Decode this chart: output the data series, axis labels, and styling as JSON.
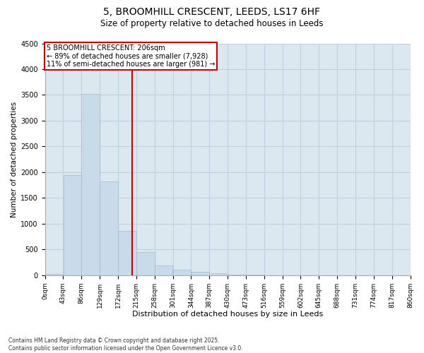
{
  "title_line1": "5, BROOMHILL CRESCENT, LEEDS, LS17 6HF",
  "title_line2": "Size of property relative to detached houses in Leeds",
  "xlabel": "Distribution of detached houses by size in Leeds",
  "ylabel": "Number of detached properties",
  "bin_labels": [
    "0sqm",
    "43sqm",
    "86sqm",
    "129sqm",
    "172sqm",
    "215sqm",
    "258sqm",
    "301sqm",
    "344sqm",
    "387sqm",
    "430sqm",
    "473sqm",
    "516sqm",
    "559sqm",
    "602sqm",
    "645sqm",
    "688sqm",
    "731sqm",
    "774sqm",
    "817sqm",
    "860sqm"
  ],
  "bin_edges": [
    0,
    43,
    86,
    129,
    172,
    215,
    258,
    301,
    344,
    387,
    430,
    473,
    516,
    559,
    602,
    645,
    688,
    731,
    774,
    817,
    860
  ],
  "bar_values": [
    30,
    1940,
    3520,
    1820,
    860,
    450,
    185,
    110,
    70,
    40,
    10,
    5,
    3,
    2,
    1,
    1,
    0,
    0,
    0,
    0
  ],
  "bar_color": "#c9daea",
  "bar_edge_color": "#a0bccc",
  "vline_x": 206,
  "vline_color": "#cc0000",
  "annotation_text": "5 BROOMHILL CRESCENT: 206sqm\n← 89% of detached houses are smaller (7,928)\n11% of semi-detached houses are larger (981) →",
  "annotation_box_color": "#ffffff",
  "annotation_box_edge": "#cc0000",
  "ylim": [
    0,
    4500
  ],
  "yticks": [
    0,
    500,
    1000,
    1500,
    2000,
    2500,
    3000,
    3500,
    4000,
    4500
  ],
  "grid_color": "#c0d0e0",
  "bg_color": "#dce8f0",
  "fig_bg_color": "#ffffff",
  "footnote": "Contains HM Land Registry data © Crown copyright and database right 2025.\nContains public sector information licensed under the Open Government Licence v3.0."
}
